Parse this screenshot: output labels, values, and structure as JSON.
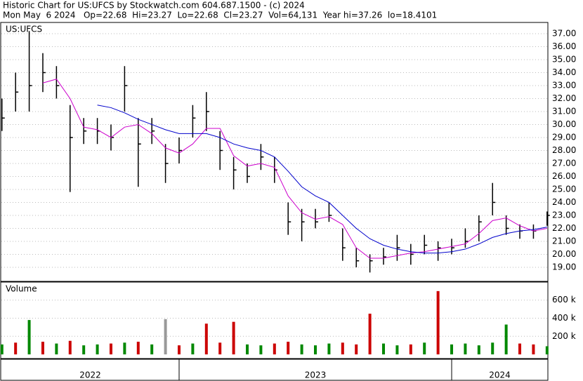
{
  "header": {
    "line1": "Historic Chart for US:UFCS by Stockwatch.com 604.687.1500 - (c) 2024",
    "line2": "Mon May  6 2024   Op=22.68  Hi=23.27  Lo=22.68  Cl=23.27  Vol=64,131  Year hi=37.26  lo=18.4101"
  },
  "chart_data": [
    {
      "type": "ohlc",
      "label": "US:UFCS",
      "color": "#000000",
      "xlim": [
        2022.348,
        2024.353
      ],
      "x": [
        2022.35,
        2022.4,
        2022.45,
        2022.5,
        2022.55,
        2022.6,
        2022.65,
        2022.7,
        2022.75,
        2022.8,
        2022.85,
        2022.9,
        2022.95,
        2023.0,
        2023.05,
        2023.1,
        2023.15,
        2023.2,
        2023.25,
        2023.3,
        2023.35,
        2023.4,
        2023.45,
        2023.5,
        2023.55,
        2023.6,
        2023.65,
        2023.7,
        2023.75,
        2023.8,
        2023.85,
        2023.9,
        2023.95,
        2024.0,
        2024.05,
        2024.1,
        2024.15,
        2024.2,
        2024.25,
        2024.3,
        2024.35
      ],
      "high": [
        32,
        34,
        37.2,
        35.5,
        34.5,
        31.5,
        30.5,
        30.5,
        30,
        34.5,
        30.5,
        30.5,
        28.5,
        29,
        31.5,
        32.5,
        29.5,
        27.5,
        27,
        28.5,
        27.5,
        24,
        23.5,
        23.5,
        24,
        22,
        20.5,
        20,
        20.5,
        21.5,
        20.8,
        21.5,
        21,
        21.2,
        22,
        23,
        25.5,
        23,
        22.3,
        22.3,
        23.3
      ],
      "low": [
        29.5,
        31,
        31,
        32.5,
        32,
        24.8,
        28.5,
        28.5,
        28,
        31,
        25.2,
        28.5,
        25.5,
        27,
        29,
        29.5,
        26.5,
        25,
        25.5,
        26.5,
        25.5,
        21.5,
        21,
        22,
        22.5,
        19.5,
        19,
        18.6,
        19.2,
        19.5,
        19.2,
        20,
        19.5,
        20,
        20.5,
        21,
        23,
        21.5,
        21.2,
        21.2,
        22.2
      ],
      "close": [
        30.5,
        32.5,
        33,
        34,
        33,
        29,
        29.5,
        29.5,
        29,
        33,
        28.5,
        29.5,
        27,
        28,
        30.5,
        31,
        28,
        26.5,
        26,
        27.5,
        26.5,
        22.5,
        22.5,
        22.5,
        23,
        20.5,
        19.5,
        19.5,
        19.8,
        20.5,
        20,
        20.7,
        20.5,
        20.5,
        21,
        22.5,
        24,
        22,
        21.8,
        21.8,
        23
      ],
      "series": [
        {
          "color": "#cc00cc",
          "values": [
            null,
            null,
            null,
            33.2,
            33.5,
            32,
            29.8,
            29.6,
            29,
            29.8,
            30,
            29.3,
            28.2,
            27.8,
            28.5,
            29.7,
            29.7,
            27.6,
            26.8,
            27,
            26.7,
            24.5,
            23.2,
            22.7,
            22.9,
            22.3,
            20.5,
            19.7,
            19.7,
            19.9,
            20.1,
            20.2,
            20.4,
            20.6,
            20.8,
            21.6,
            22.6,
            22.8,
            22.2,
            21.8,
            22
          ]
        },
        {
          "color": "#0000cc",
          "values": [
            null,
            null,
            null,
            null,
            null,
            null,
            null,
            31.5,
            31.3,
            30.9,
            30.4,
            30,
            29.6,
            29.3,
            29.3,
            29.3,
            29,
            28.5,
            28.2,
            28,
            27.5,
            26.4,
            25.2,
            24.5,
            24,
            23,
            22,
            21.2,
            20.7,
            20.4,
            20.2,
            20.1,
            20.1,
            20.2,
            20.4,
            20.8,
            21.3,
            21.6,
            21.8,
            21.9,
            22.1
          ]
        }
      ],
      "ylim": [
        17.97,
        37.81
      ],
      "yticks": [
        {
          "value": 19,
          "label": "19.00"
        },
        {
          "value": 20,
          "label": "20.00"
        },
        {
          "value": 21,
          "label": "21.00"
        },
        {
          "value": 22,
          "label": "22.00"
        },
        {
          "value": 23,
          "label": "23.00"
        },
        {
          "value": 24,
          "label": "24.00"
        },
        {
          "value": 25,
          "label": "25.00"
        },
        {
          "value": 26,
          "label": "26.00"
        },
        {
          "value": 27,
          "label": "27.00"
        },
        {
          "value": 28,
          "label": "28.00"
        },
        {
          "value": 29,
          "label": "29.00"
        },
        {
          "value": 30,
          "label": "30.00"
        },
        {
          "value": 31,
          "label": "31.00"
        },
        {
          "value": 32,
          "label": "32.00"
        },
        {
          "value": 33,
          "label": "33.00"
        },
        {
          "value": 34,
          "label": "34.00"
        },
        {
          "value": 35,
          "label": "35.00"
        },
        {
          "value": 36,
          "label": "36.00"
        },
        {
          "value": 37,
          "label": "37.00"
        }
      ],
      "grid": true
    },
    {
      "type": "bar",
      "label": "Volume",
      "xlim": [
        2022.348,
        2024.353
      ],
      "x": [
        2022.35,
        2022.4,
        2022.45,
        2022.5,
        2022.55,
        2022.6,
        2022.65,
        2022.7,
        2022.75,
        2022.8,
        2022.85,
        2022.9,
        2022.95,
        2023.0,
        2023.05,
        2023.1,
        2023.15,
        2023.2,
        2023.25,
        2023.3,
        2023.35,
        2023.4,
        2023.45,
        2023.5,
        2023.55,
        2023.6,
        2023.65,
        2023.7,
        2023.75,
        2023.8,
        2023.85,
        2023.9,
        2023.95,
        2024.0,
        2024.05,
        2024.1,
        2024.15,
        2024.2,
        2024.25,
        2024.3,
        2024.35
      ],
      "values": [
        110000,
        130000,
        380000,
        140000,
        120000,
        150000,
        100000,
        110000,
        120000,
        130000,
        140000,
        110000,
        390000,
        100000,
        120000,
        340000,
        130000,
        360000,
        110000,
        100000,
        120000,
        140000,
        110000,
        100000,
        120000,
        130000,
        110000,
        450000,
        120000,
        100000,
        110000,
        130000,
        700000,
        110000,
        120000,
        100000,
        130000,
        330000,
        120000,
        110000,
        90000
      ],
      "colors": [
        "#008800",
        "#cc0000",
        "#008800",
        "#cc0000",
        "#008800",
        "#cc0000",
        "#008800",
        "#008800",
        "#cc0000",
        "#008800",
        "#cc0000",
        "#008800",
        "#999999",
        "#cc0000",
        "#008800",
        "#cc0000",
        "#cc0000",
        "#cc0000",
        "#008800",
        "#008800",
        "#cc0000",
        "#cc0000",
        "#008800",
        "#008800",
        "#008800",
        "#cc0000",
        "#cc0000",
        "#cc0000",
        "#008800",
        "#008800",
        "#cc0000",
        "#008800",
        "#cc0000",
        "#008800",
        "#008800",
        "#008800",
        "#008800",
        "#008800",
        "#cc0000",
        "#cc0000",
        "#008800"
      ],
      "ylim": [
        -46000,
        792000
      ],
      "yticks": [
        {
          "value": 200000,
          "label": "200 k"
        },
        {
          "value": 400000,
          "label": "400 k"
        },
        {
          "value": 600000,
          "label": "600 k"
        }
      ],
      "xticks": [
        2023,
        2024
      ],
      "x_periods": [
        "2022",
        "2023",
        "2024"
      ]
    }
  ]
}
